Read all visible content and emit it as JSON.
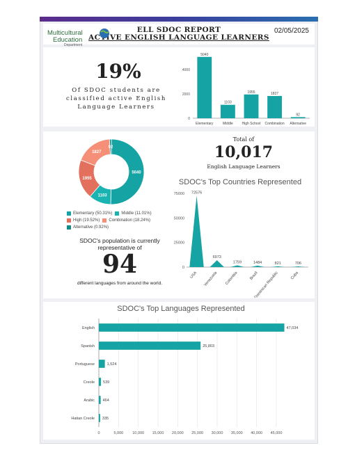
{
  "header": {
    "title_line1": "ELL SDOC REPORT",
    "title_line2": "ACTIVE ENGLISH LANGUAGE LEARNERS",
    "date": "02/05/2025",
    "logo_line1": "Multicultural",
    "logo_line2": "Education",
    "logo_line3": "Department"
  },
  "percent_stat": {
    "value": "19%",
    "caption": "Of SDOC students are classified active English Language Learners"
  },
  "total_stat": {
    "label": "Total of",
    "value": "10,017",
    "caption": "English Language Learners"
  },
  "representation_stat": {
    "text": "SDOC's population is currently representative of",
    "value": "94",
    "caption": "different languages from around the world."
  },
  "colors": {
    "teal": "#16a3a3",
    "salmon": "#f1806a",
    "coral": "#e2705c",
    "dark_teal": "#128a87"
  },
  "chart_data": [
    {
      "type": "bar",
      "title": "",
      "categories": [
        "Elementary",
        "Middle",
        "High School",
        "Combination",
        "Alternative"
      ],
      "values": [
        5040,
        1103,
        1955,
        1827,
        92
      ],
      "yticks": [
        "0",
        "2000",
        "4000"
      ],
      "ylim": [
        0,
        5600
      ],
      "grid": false,
      "legend": "none"
    },
    {
      "type": "pie",
      "title": "",
      "categories": [
        "Elementary",
        "Middle",
        "High",
        "Combination",
        "Alternative"
      ],
      "values": [
        5040,
        1103,
        1955,
        1827,
        92
      ],
      "legend_labels": [
        "Elementary (50.31%)",
        "Middle (11.01%)",
        "High (19.52%)",
        "Combination (18.24%)",
        "Alternative (0.92%)"
      ],
      "colors": [
        "#16a3a3",
        "#19b4b1",
        "#e2705c",
        "#f58f78",
        "#128a87"
      ],
      "legend": "bottom"
    },
    {
      "type": "area",
      "title": "SDOC's Top Countries Represented",
      "categories": [
        "USA",
        "Venezuela",
        "Colombia",
        "Brazil",
        "Dominican Republic",
        "Cuba"
      ],
      "values": [
        72576,
        6973,
        1759,
        1484,
        821,
        706
      ],
      "value_labels": [
        "72576",
        "6973",
        "1759",
        "1484",
        "821",
        "706"
      ],
      "yticks": [
        "0",
        "25000",
        "50000",
        "75000"
      ],
      "ylim": [
        0,
        75000
      ],
      "grid": false,
      "legend": "none"
    },
    {
      "type": "bar",
      "orientation": "horizontal",
      "title": "SDOC's Top Languages Represented",
      "categories": [
        "English",
        "Spanish",
        "Portuguese",
        "Creole",
        "Arabic",
        "Hatian Creole"
      ],
      "values": [
        47034,
        25803,
        1524,
        539,
        464,
        335
      ],
      "value_labels": [
        "47,034",
        "25,803",
        "1,524",
        "539",
        "464",
        "335"
      ],
      "xticks": [
        "0",
        "5,000",
        "10,000",
        "15,000",
        "20,000",
        "25,000",
        "30,000",
        "35,000",
        "40,000",
        "45,000"
      ],
      "xlim": [
        0,
        48000
      ],
      "grid": true,
      "legend": "none"
    }
  ]
}
